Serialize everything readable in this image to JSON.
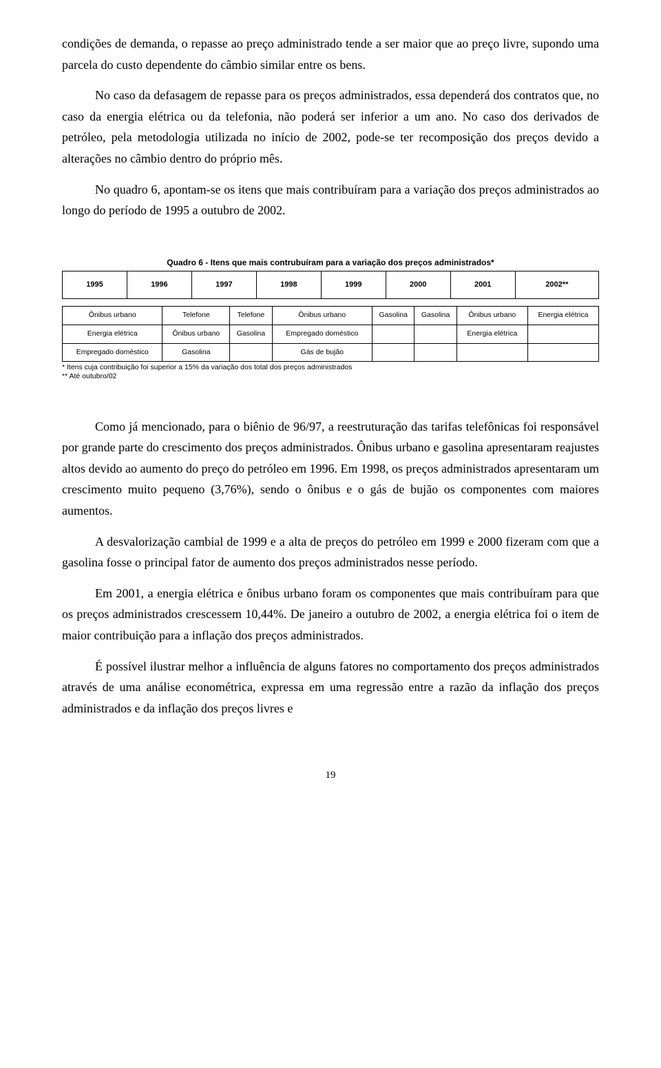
{
  "paragraphs": {
    "p1": "condições de demanda, o repasse ao preço administrado tende a ser maior que ao preço livre, supondo uma parcela do custo dependente do câmbio similar entre os bens.",
    "p2": "No caso da defasagem de repasse para os preços administrados, essa dependerá dos contratos que, no caso da energia elétrica ou da telefonia, não poderá ser inferior a um ano. No caso dos derivados de petróleo, pela metodologia utilizada no início de 2002, pode-se ter recomposição dos preços devido a alterações no câmbio dentro do próprio mês.",
    "p3": "No quadro 6, apontam-se os itens que mais contribuíram para a variação dos preços administrados ao longo do período de 1995 a outubro de 2002.",
    "p4": "Como já mencionado, para o biênio de 96/97, a reestruturação das tarifas telefônicas foi responsável por grande parte do crescimento dos preços administrados. Ônibus urbano e gasolina apresentaram reajustes altos devido ao aumento do preço do petróleo em 1996. Em 1998, os preços administrados apresentaram um crescimento muito pequeno (3,76%), sendo o ônibus e o gás de bujão os componentes com maiores aumentos.",
    "p5": "A desvalorização cambial de 1999 e a alta de preços do petróleo em 1999 e 2000 fizeram com que a gasolina fosse o principal fator de aumento dos preços administrados nesse período.",
    "p6": "Em 2001, a energia elétrica e ônibus urbano foram os componentes que mais contribuíram para que os preços administrados crescessem 10,44%. De janeiro a outubro de 2002, a energia elétrica foi o item de maior contribuição para a inflação dos preços administrados.",
    "p7": "É possível ilustrar melhor a influência de alguns fatores no comportamento dos preços administrados através de uma análise econométrica, expressa em uma regressão entre a razão da inflação dos preços administrados e da inflação dos preços livres e"
  },
  "table": {
    "caption": "Quadro 6 - Itens que mais contrubuíram para a variação dos preços administrados*",
    "years": [
      "1995",
      "1996",
      "1997",
      "1998",
      "1999",
      "2000",
      "2001",
      "2002**"
    ],
    "rows": [
      [
        "Ônibus urbano",
        "Telefone",
        "Telefone",
        "Ônibus urbano",
        "Gasolina",
        "Gasolina",
        "Ônibus urbano",
        "Energia elétrica"
      ],
      [
        "Energia elétrica",
        "Ônibus urbano",
        "Gasolina",
        "Empregado doméstico",
        "",
        "",
        "Energia elétrica",
        ""
      ],
      [
        "Empregado doméstico",
        "Gasolina",
        "",
        "Gás de bujão",
        "",
        "",
        "",
        ""
      ]
    ],
    "footnote1": "* Itens cuja contribuição foi superior a 15% da variação dos total dos preços administrados",
    "footnote2": "** Até outubro/02"
  },
  "pageNumber": "19"
}
